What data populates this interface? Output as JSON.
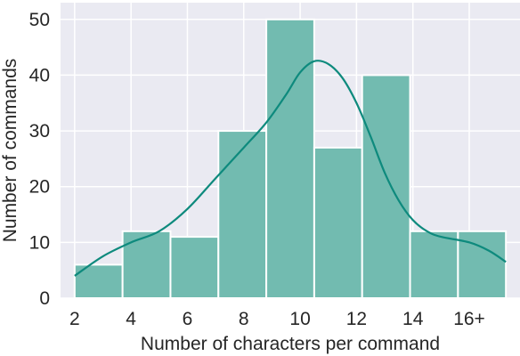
{
  "chart_data": {
    "type": "bar",
    "style": "histogram with density (KDE) curve",
    "title": "",
    "xlabel": "Number of characters per command",
    "ylabel": "Number of commands",
    "x_tick_labels": [
      "2",
      "4",
      "6",
      "8",
      "10",
      "12",
      "14",
      "16+"
    ],
    "x_tick_values": [
      2,
      4,
      6,
      8,
      10,
      12,
      14,
      16
    ],
    "bins": [
      {
        "start": 2,
        "end": 3.7,
        "count": 6
      },
      {
        "start": 3.7,
        "end": 5.4,
        "count": 12
      },
      {
        "start": 5.4,
        "end": 7.1,
        "count": 11
      },
      {
        "start": 7.1,
        "end": 8.8,
        "count": 30
      },
      {
        "start": 8.8,
        "end": 10.5,
        "count": 50
      },
      {
        "start": 10.5,
        "end": 12.2,
        "count": 27
      },
      {
        "start": 12.2,
        "end": 13.9,
        "count": 40
      },
      {
        "start": 13.9,
        "end": 15.6,
        "count": 12
      },
      {
        "start": 15.6,
        "end": 17.3,
        "count": 12
      }
    ],
    "kde_curve": [
      [
        2.0,
        4
      ],
      [
        3.0,
        7.5
      ],
      [
        4.0,
        10
      ],
      [
        5.0,
        12
      ],
      [
        6.0,
        16
      ],
      [
        7.0,
        21.5
      ],
      [
        8.0,
        27
      ],
      [
        8.8,
        31.5
      ],
      [
        9.5,
        36.5
      ],
      [
        10.0,
        40.5
      ],
      [
        10.5,
        42.5
      ],
      [
        11.0,
        42
      ],
      [
        11.5,
        39.5
      ],
      [
        12.0,
        35
      ],
      [
        12.5,
        29
      ],
      [
        13.0,
        22.5
      ],
      [
        13.5,
        17.5
      ],
      [
        14.0,
        14
      ],
      [
        14.5,
        12
      ],
      [
        15.0,
        11
      ],
      [
        16.0,
        10
      ],
      [
        16.7,
        8.5
      ],
      [
        17.3,
        6.5
      ]
    ],
    "xlim": [
      1.5,
      17.8
    ],
    "ylim": [
      0,
      53
    ],
    "y_ticks": [
      0,
      10,
      20,
      30,
      40,
      50
    ],
    "grid": true,
    "legend": "none",
    "colors": {
      "background": "#eaeaf2",
      "grid": "#ffffff",
      "bar_fill": "#72bbb0",
      "bar_edge": "#ffffff",
      "kde_line": "#0e8a7d",
      "text": "#262626"
    }
  }
}
